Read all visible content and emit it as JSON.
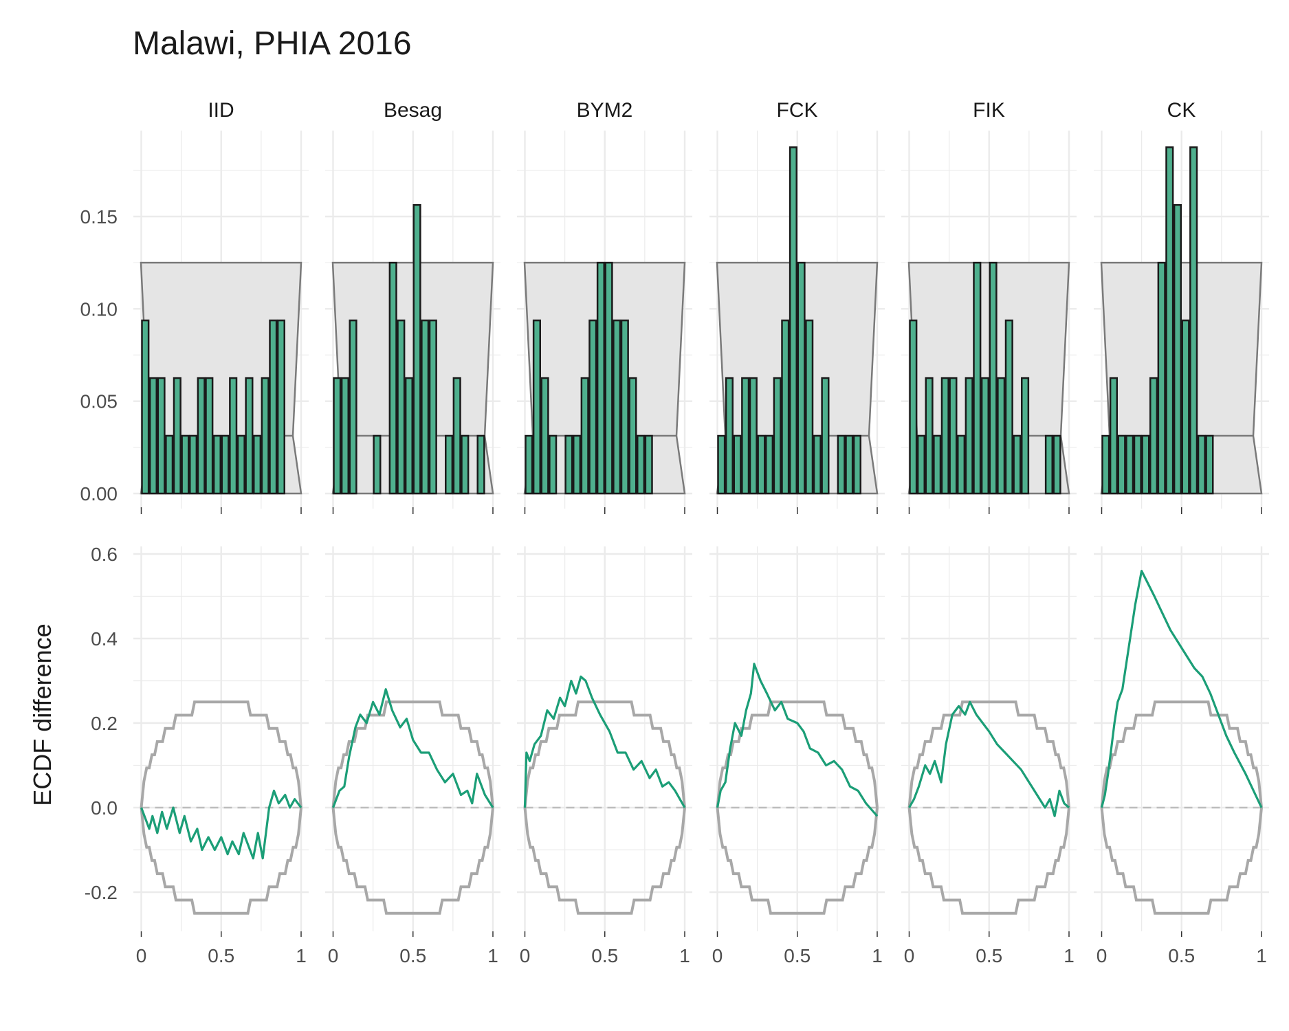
{
  "chart_data": {
    "type": "bar",
    "title": "Malawi, PHIA 2016",
    "ylabel": "ECDF difference",
    "panels": [
      "IID",
      "Besag",
      "BYM2",
      "FCK",
      "FIK",
      "CK"
    ],
    "x_ticks": [
      "0",
      "0.5",
      "1"
    ],
    "hist_y_ticks": [
      "0.00",
      "0.05",
      "0.10",
      "0.15"
    ],
    "ecdf_y_ticks": [
      "-0.2",
      "0.0",
      "0.2",
      "0.4",
      "0.6"
    ],
    "hist_ylim": [
      0,
      0.19
    ],
    "ecdf_ylim": [
      -0.3,
      0.6
    ],
    "bins": 20,
    "hist_band": {
      "lower": 0.03125,
      "upper": 0.125
    },
    "colors": {
      "bar_fill": "#4fb08e",
      "line": "#1b9e77",
      "band_fill": "#e5e5e5",
      "band_stroke": "#7a7a7a",
      "envelope": "#a8a8a8",
      "grid": "#ebebeb"
    },
    "histograms": {
      "IID": [
        0.09375,
        0.0625,
        0.0625,
        0.03125,
        0.0625,
        0.03125,
        0.03125,
        0.0625,
        0.0625,
        0.03125,
        0.03125,
        0.0625,
        0.03125,
        0.0625,
        0.03125,
        0.0625,
        0.09375,
        0.09375,
        0,
        0
      ],
      "Besag": [
        0.0625,
        0.0625,
        0.09375,
        0,
        0,
        0.03125,
        0,
        0.125,
        0.09375,
        0.0625,
        0.15625,
        0.09375,
        0.09375,
        0,
        0.03125,
        0.0625,
        0.03125,
        0,
        0.03125,
        0
      ],
      "BYM2": [
        0.03125,
        0.09375,
        0.0625,
        0.03125,
        0,
        0.03125,
        0.03125,
        0.0625,
        0.09375,
        0.125,
        0.125,
        0.09375,
        0.09375,
        0.0625,
        0.03125,
        0.03125,
        0,
        0,
        0,
        0
      ],
      "FCK": [
        0.03125,
        0.0625,
        0.03125,
        0.0625,
        0.0625,
        0.03125,
        0.03125,
        0.0625,
        0.09375,
        0.1875,
        0.125,
        0.09375,
        0.03125,
        0.0625,
        0,
        0.03125,
        0.03125,
        0.03125,
        0,
        0
      ],
      "FIK": [
        0.09375,
        0.03125,
        0.0625,
        0.03125,
        0.0625,
        0.0625,
        0.03125,
        0.0625,
        0.125,
        0.0625,
        0.125,
        0.0625,
        0.09375,
        0.03125,
        0.0625,
        0,
        0,
        0.03125,
        0.03125,
        0
      ],
      "CK": [
        0.03125,
        0.0625,
        0.03125,
        0.03125,
        0.03125,
        0.03125,
        0.0625,
        0.125,
        0.1875,
        0.15625,
        0.09375,
        0.1875,
        0.03125,
        0.03125,
        0,
        0,
        0,
        0,
        0,
        0
      ]
    },
    "ecdf_diff": {
      "IID": [
        [
          0,
          0
        ],
        [
          0.05,
          -0.05
        ],
        [
          0.07,
          -0.02
        ],
        [
          0.1,
          -0.06
        ],
        [
          0.13,
          -0.01
        ],
        [
          0.16,
          -0.05
        ],
        [
          0.2,
          0.0
        ],
        [
          0.24,
          -0.06
        ],
        [
          0.27,
          -0.02
        ],
        [
          0.31,
          -0.08
        ],
        [
          0.35,
          -0.05
        ],
        [
          0.38,
          -0.1
        ],
        [
          0.42,
          -0.07
        ],
        [
          0.46,
          -0.1
        ],
        [
          0.5,
          -0.07
        ],
        [
          0.54,
          -0.11
        ],
        [
          0.57,
          -0.08
        ],
        [
          0.61,
          -0.11
        ],
        [
          0.64,
          -0.06
        ],
        [
          0.7,
          -0.12
        ],
        [
          0.73,
          -0.06
        ],
        [
          0.76,
          -0.12
        ],
        [
          0.8,
          0.0
        ],
        [
          0.83,
          0.04
        ],
        [
          0.86,
          0.01
        ],
        [
          0.9,
          0.03
        ],
        [
          0.93,
          0.0
        ],
        [
          0.96,
          0.02
        ],
        [
          1,
          0
        ]
      ],
      "Besag": [
        [
          0,
          0
        ],
        [
          0.04,
          0.04
        ],
        [
          0.07,
          0.05
        ],
        [
          0.1,
          0.12
        ],
        [
          0.14,
          0.19
        ],
        [
          0.17,
          0.22
        ],
        [
          0.21,
          0.2
        ],
        [
          0.25,
          0.25
        ],
        [
          0.29,
          0.22
        ],
        [
          0.33,
          0.28
        ],
        [
          0.37,
          0.23
        ],
        [
          0.42,
          0.19
        ],
        [
          0.46,
          0.21
        ],
        [
          0.5,
          0.16
        ],
        [
          0.55,
          0.13
        ],
        [
          0.6,
          0.13
        ],
        [
          0.65,
          0.09
        ],
        [
          0.7,
          0.06
        ],
        [
          0.75,
          0.08
        ],
        [
          0.8,
          0.03
        ],
        [
          0.84,
          0.04
        ],
        [
          0.87,
          0.01
        ],
        [
          0.9,
          0.08
        ],
        [
          0.95,
          0.03
        ],
        [
          1,
          0
        ]
      ],
      "BYM2": [
        [
          0,
          0
        ],
        [
          0.01,
          0.13
        ],
        [
          0.03,
          0.11
        ],
        [
          0.06,
          0.15
        ],
        [
          0.1,
          0.17
        ],
        [
          0.14,
          0.23
        ],
        [
          0.18,
          0.21
        ],
        [
          0.22,
          0.26
        ],
        [
          0.25,
          0.24
        ],
        [
          0.29,
          0.3
        ],
        [
          0.32,
          0.27
        ],
        [
          0.35,
          0.31
        ],
        [
          0.38,
          0.3
        ],
        [
          0.42,
          0.26
        ],
        [
          0.47,
          0.22
        ],
        [
          0.53,
          0.18
        ],
        [
          0.58,
          0.13
        ],
        [
          0.63,
          0.13
        ],
        [
          0.68,
          0.09
        ],
        [
          0.73,
          0.11
        ],
        [
          0.78,
          0.07
        ],
        [
          0.82,
          0.09
        ],
        [
          0.86,
          0.05
        ],
        [
          0.9,
          0.06
        ],
        [
          0.94,
          0.04
        ],
        [
          1,
          0
        ]
      ],
      "FCK": [
        [
          0,
          0
        ],
        [
          0.02,
          0.04
        ],
        [
          0.05,
          0.06
        ],
        [
          0.08,
          0.14
        ],
        [
          0.11,
          0.2
        ],
        [
          0.15,
          0.17
        ],
        [
          0.18,
          0.23
        ],
        [
          0.21,
          0.27
        ],
        [
          0.23,
          0.34
        ],
        [
          0.27,
          0.3
        ],
        [
          0.31,
          0.27
        ],
        [
          0.36,
          0.23
        ],
        [
          0.4,
          0.25
        ],
        [
          0.44,
          0.21
        ],
        [
          0.5,
          0.2
        ],
        [
          0.54,
          0.18
        ],
        [
          0.58,
          0.14
        ],
        [
          0.63,
          0.13
        ],
        [
          0.68,
          0.1
        ],
        [
          0.73,
          0.11
        ],
        [
          0.78,
          0.09
        ],
        [
          0.83,
          0.05
        ],
        [
          0.88,
          0.04
        ],
        [
          0.93,
          0.01
        ],
        [
          1,
          -0.02
        ]
      ],
      "FIK": [
        [
          0,
          0
        ],
        [
          0.03,
          0.02
        ],
        [
          0.06,
          0.05
        ],
        [
          0.1,
          0.1
        ],
        [
          0.13,
          0.08
        ],
        [
          0.16,
          0.11
        ],
        [
          0.2,
          0.06
        ],
        [
          0.23,
          0.15
        ],
        [
          0.27,
          0.22
        ],
        [
          0.31,
          0.24
        ],
        [
          0.35,
          0.22
        ],
        [
          0.38,
          0.25
        ],
        [
          0.42,
          0.22
        ],
        [
          0.46,
          0.2
        ],
        [
          0.5,
          0.18
        ],
        [
          0.55,
          0.15
        ],
        [
          0.6,
          0.13
        ],
        [
          0.65,
          0.11
        ],
        [
          0.7,
          0.09
        ],
        [
          0.75,
          0.06
        ],
        [
          0.8,
          0.03
        ],
        [
          0.85,
          0.0
        ],
        [
          0.88,
          0.02
        ],
        [
          0.91,
          -0.02
        ],
        [
          0.94,
          0.04
        ],
        [
          0.97,
          0.01
        ],
        [
          1,
          0
        ]
      ],
      "CK": [
        [
          0,
          0
        ],
        [
          0.02,
          0.03
        ],
        [
          0.04,
          0.08
        ],
        [
          0.06,
          0.14
        ],
        [
          0.08,
          0.2
        ],
        [
          0.1,
          0.25
        ],
        [
          0.13,
          0.28
        ],
        [
          0.17,
          0.38
        ],
        [
          0.21,
          0.48
        ],
        [
          0.25,
          0.56
        ],
        [
          0.29,
          0.53
        ],
        [
          0.33,
          0.5
        ],
        [
          0.38,
          0.46
        ],
        [
          0.43,
          0.42
        ],
        [
          0.48,
          0.39
        ],
        [
          0.53,
          0.36
        ],
        [
          0.58,
          0.33
        ],
        [
          0.63,
          0.31
        ],
        [
          0.68,
          0.27
        ],
        [
          0.73,
          0.22
        ],
        [
          0.78,
          0.17
        ],
        [
          0.83,
          0.13
        ],
        [
          0.9,
          0.08
        ],
        [
          1,
          0
        ]
      ]
    },
    "envelope_halfwidth": 0.25
  }
}
